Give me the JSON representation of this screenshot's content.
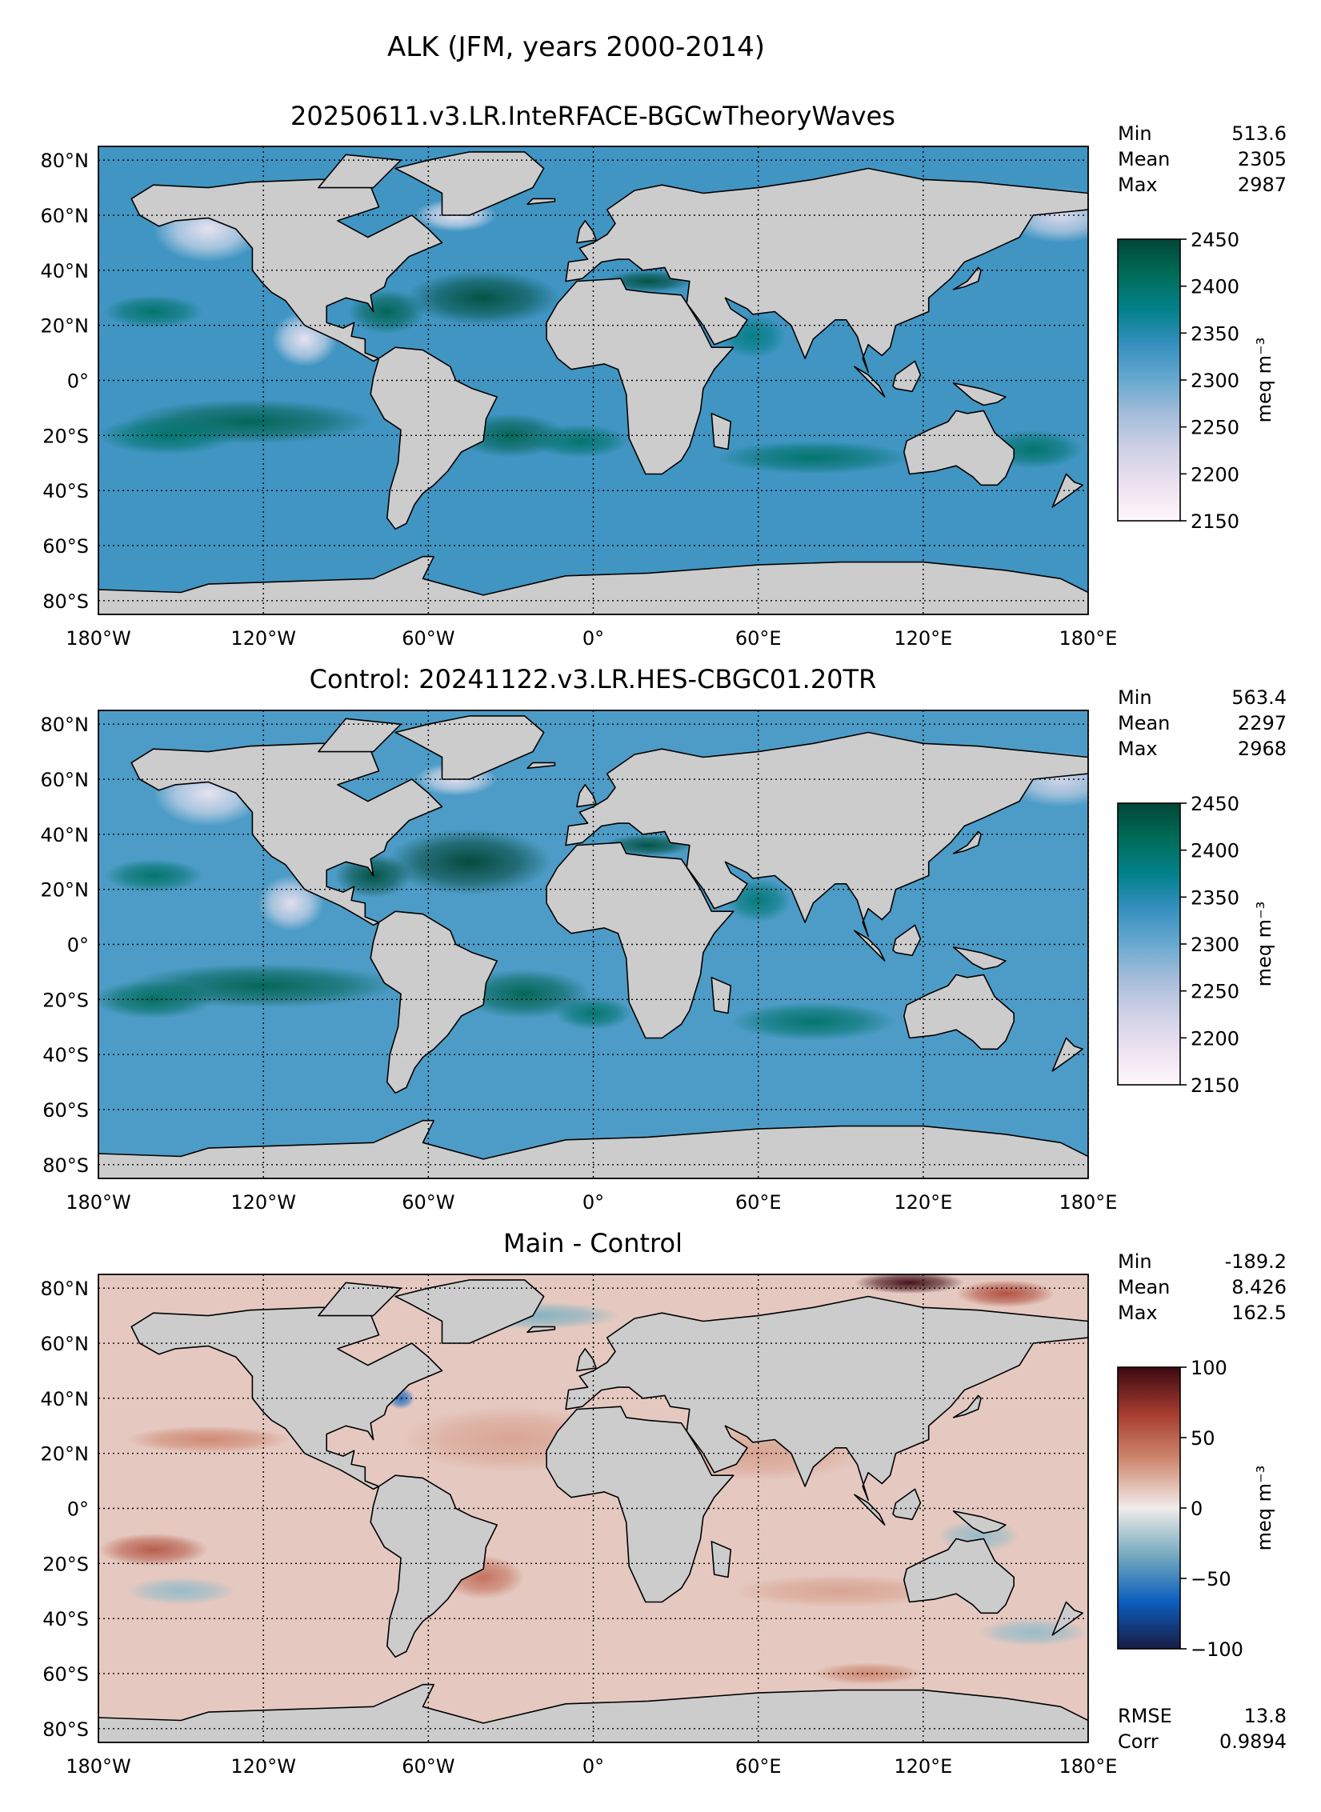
{
  "title": "ALK (JFM, years 2000-2014)",
  "colors": {
    "land": "#cccccc",
    "coast": "#000000",
    "grid": "#000000",
    "background": "#ffffff"
  },
  "chart_data": [
    {
      "type": "heatmap",
      "name": "main",
      "title": "20250611.v3.LR.InteRFACE-BGCwTheoryWaves",
      "x_ticks": [
        "180°W",
        "120°W",
        "60°W",
        "0°",
        "60°E",
        "120°E",
        "180°E"
      ],
      "y_ticks": [
        "80°N",
        "60°N",
        "40°N",
        "20°N",
        "0°",
        "20°S",
        "40°S",
        "60°S",
        "80°S"
      ],
      "stats": [
        {
          "label": "Min",
          "value": "513.6"
        },
        {
          "label": "Mean",
          "value": "2305"
        },
        {
          "label": "Max",
          "value": "2987"
        }
      ],
      "colorbar": {
        "ticks": [
          "2450",
          "2400",
          "2350",
          "2300",
          "2250",
          "2200",
          "2150"
        ],
        "range": [
          2150,
          2450
        ],
        "label": "meq m⁻³",
        "colormap": "PuBuGn",
        "stops": [
          "#fff7fb",
          "#ece2f0",
          "#d0d1e6",
          "#a6bddb",
          "#67a9cf",
          "#3690c0",
          "#02818a",
          "#016c59",
          "#014636"
        ]
      }
    },
    {
      "type": "heatmap",
      "name": "control",
      "title": "Control: 20241122.v3.LR.HES-CBGC01.20TR",
      "x_ticks": [
        "180°W",
        "120°W",
        "60°W",
        "0°",
        "60°E",
        "120°E",
        "180°E"
      ],
      "y_ticks": [
        "80°N",
        "60°N",
        "40°N",
        "20°N",
        "0°",
        "20°S",
        "40°S",
        "60°S",
        "80°S"
      ],
      "stats": [
        {
          "label": "Min",
          "value": "563.4"
        },
        {
          "label": "Mean",
          "value": "2297"
        },
        {
          "label": "Max",
          "value": "2968"
        }
      ],
      "colorbar": {
        "ticks": [
          "2450",
          "2400",
          "2350",
          "2300",
          "2250",
          "2200",
          "2150"
        ],
        "range": [
          2150,
          2450
        ],
        "label": "meq m⁻³",
        "colormap": "PuBuGn",
        "stops": [
          "#fff7fb",
          "#ece2f0",
          "#d0d1e6",
          "#a6bddb",
          "#67a9cf",
          "#3690c0",
          "#02818a",
          "#016c59",
          "#014636"
        ]
      }
    },
    {
      "type": "heatmap",
      "name": "difference",
      "title": "Main - Control",
      "x_ticks": [
        "180°W",
        "120°W",
        "60°W",
        "0°",
        "60°E",
        "120°E",
        "180°E"
      ],
      "y_ticks": [
        "80°N",
        "60°N",
        "40°N",
        "20°N",
        "0°",
        "20°S",
        "40°S",
        "60°S",
        "80°S"
      ],
      "stats": [
        {
          "label": "Min",
          "value": "-189.2"
        },
        {
          "label": "Mean",
          "value": "8.426"
        },
        {
          "label": "Max",
          "value": "162.5"
        }
      ],
      "bottom_stats": [
        {
          "label": "RMSE",
          "value": "13.8"
        },
        {
          "label": "Corr",
          "value": "0.9894"
        }
      ],
      "colorbar": {
        "ticks": [
          "100",
          "50",
          "0",
          "−50",
          "−100"
        ],
        "range": [
          -100,
          100
        ],
        "label": "meq m⁻³",
        "colormap": "balance",
        "stops": [
          "#181c43",
          "#0c5ebe",
          "#75aabe",
          "#f1eceb",
          "#d08b73",
          "#a73c2e",
          "#3c0912"
        ]
      }
    }
  ]
}
